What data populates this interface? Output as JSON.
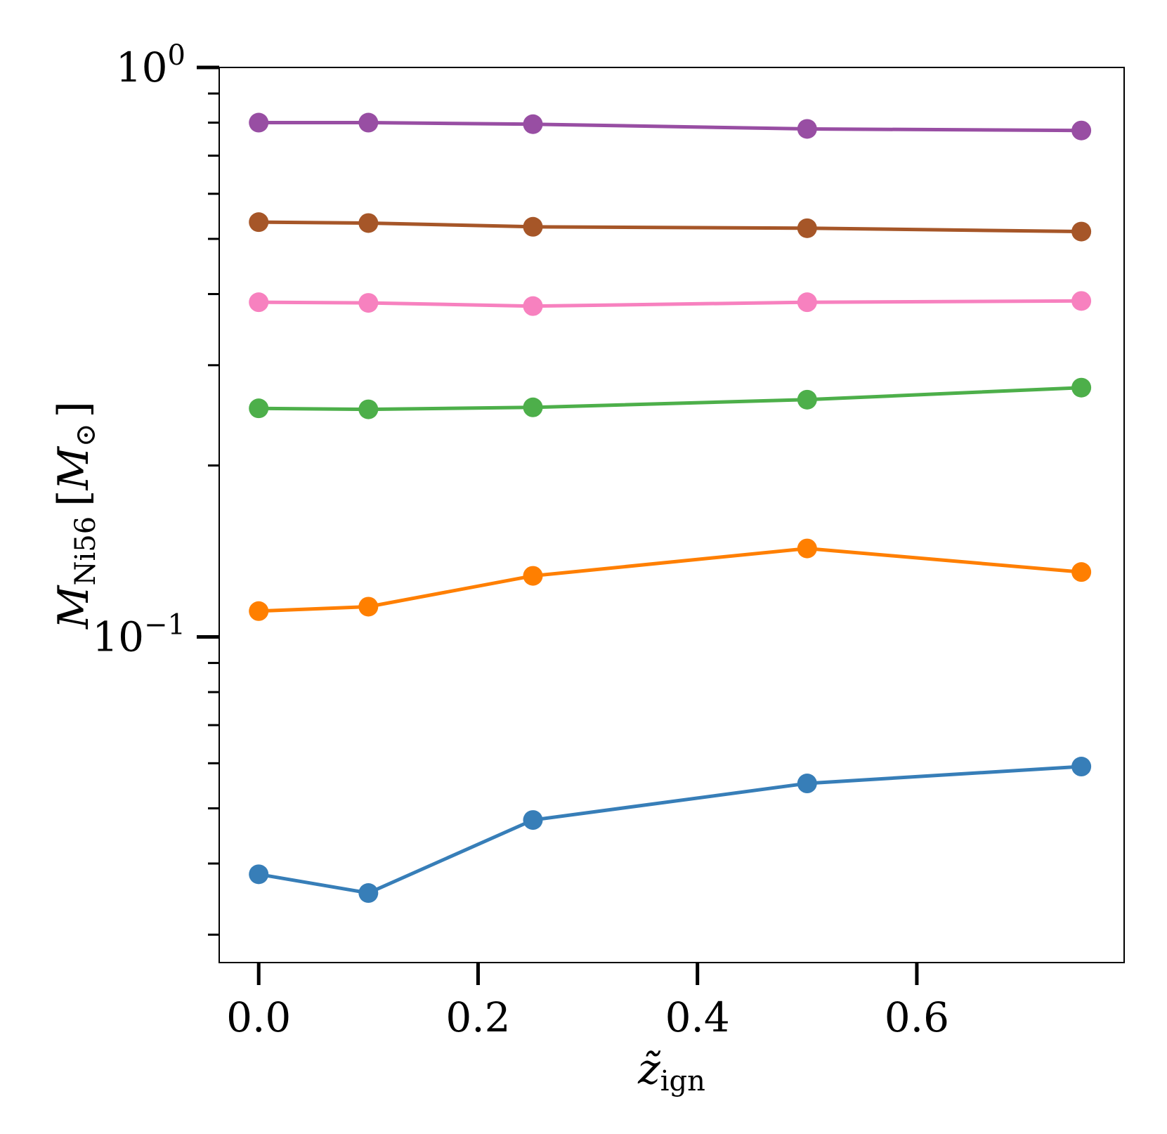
{
  "chart_data": {
    "type": "line",
    "title": "",
    "xlabel": "z̃ign",
    "xlabel_main": "z̃",
    "xlabel_sub": "ign",
    "ylabel": "MNi56 [M⊙]",
    "ylabel_main": "M",
    "ylabel_sub": "Ni56",
    "ylabel_unit_main": "M",
    "ylabel_unit_sub": "⊙",
    "yscale": "log",
    "xlim": [
      -0.036,
      0.789
    ],
    "ylim": [
      0.0268,
      1.0
    ],
    "xticks": [
      0.0,
      0.2,
      0.4,
      0.6
    ],
    "xtick_labels": [
      "0.0",
      "0.2",
      "0.4",
      "0.6"
    ],
    "ytick_labels": [
      {
        "value": 1.0,
        "base": "10",
        "exp": "0"
      },
      {
        "value": 0.1,
        "base": "10",
        "exp": "−1"
      }
    ],
    "x": [
      0.0,
      0.1,
      0.25,
      0.5,
      0.75
    ],
    "series": [
      {
        "name": "series-purple",
        "color": "#984ea3",
        "values": [
          0.8,
          0.8,
          0.795,
          0.78,
          0.775
        ]
      },
      {
        "name": "series-brown",
        "color": "#a65628",
        "values": [
          0.535,
          0.533,
          0.525,
          0.522,
          0.515
        ]
      },
      {
        "name": "series-pink",
        "color": "#f781bf",
        "values": [
          0.387,
          0.386,
          0.381,
          0.387,
          0.389
        ]
      },
      {
        "name": "series-green",
        "color": "#4daf4a",
        "values": [
          0.252,
          0.251,
          0.253,
          0.261,
          0.274
        ]
      },
      {
        "name": "series-orange",
        "color": "#ff7f00",
        "values": [
          0.111,
          0.113,
          0.128,
          0.143,
          0.13
        ]
      },
      {
        "name": "series-blue",
        "color": "#377eb8",
        "values": [
          0.0383,
          0.0355,
          0.0477,
          0.0553,
          0.0592
        ]
      }
    ],
    "legend": "none",
    "grid": false
  }
}
